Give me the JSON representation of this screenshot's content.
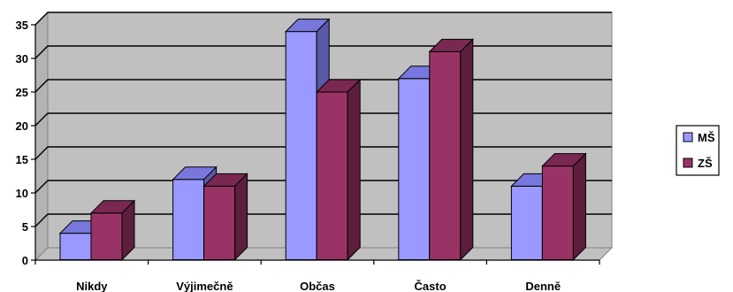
{
  "chart_data": {
    "type": "bar",
    "categories": [
      "Nikdy",
      "Výjimečně",
      "Občas",
      "Často",
      "Denně"
    ],
    "series": [
      {
        "name": "MŠ",
        "values": [
          4,
          12,
          34,
          27,
          11
        ]
      },
      {
        "name": "ZŠ",
        "values": [
          7,
          11,
          25,
          31,
          14
        ]
      }
    ],
    "ylim": [
      0,
      35
    ],
    "yticks": [
      0,
      5,
      10,
      15,
      20,
      25,
      30,
      35
    ],
    "grid": true,
    "legend": "right",
    "colors": {
      "MŠ": {
        "front": "#9999ff",
        "top": "#7777dd",
        "side": "#5a5aa8"
      },
      "ZŠ": {
        "front": "#993366",
        "top": "#7a2852",
        "side": "#5c1e3c"
      },
      "wall": "#c0c0c0",
      "floor": "#c0c0c0"
    }
  }
}
